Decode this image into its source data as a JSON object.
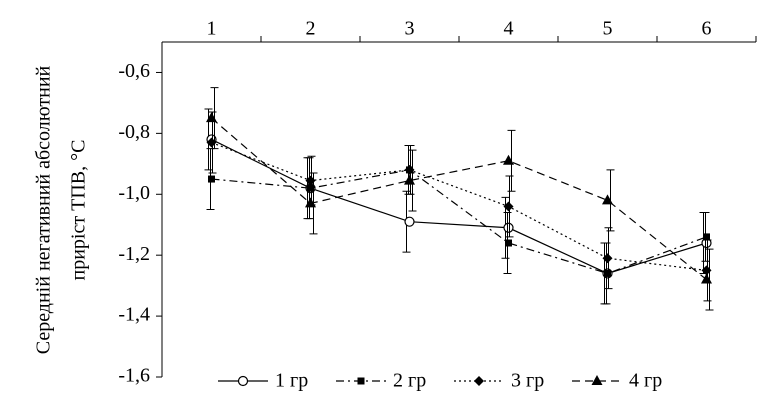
{
  "chart_data": {
    "type": "line",
    "ylabel_lines": [
      "Середній негативний абсолютний",
      "приріст ТПВ, °C"
    ],
    "categories": [
      "1",
      "2",
      "3",
      "4",
      "5",
      "6"
    ],
    "ylim": [
      -1.6,
      -0.5
    ],
    "yticks": [
      {
        "value": -0.6,
        "label": "-0,6"
      },
      {
        "value": -0.8,
        "label": "-0,8"
      },
      {
        "value": -1.0,
        "label": "-1,0"
      },
      {
        "value": -1.2,
        "label": "-1,2"
      },
      {
        "value": -1.4,
        "label": "-1,4"
      },
      {
        "value": -1.6,
        "label": "-1,6"
      }
    ],
    "grid": false,
    "legend": "bottom",
    "series": [
      {
        "name": "1 гр",
        "color": "#000000",
        "marker": "circle-open",
        "dash": "solid",
        "values": [
          -0.82,
          -0.98,
          -1.09,
          -1.11,
          -1.26,
          -1.16
        ],
        "errors": [
          0.1,
          0.1,
          0.1,
          0.1,
          0.1,
          0.1
        ]
      },
      {
        "name": "2 гр",
        "color": "#000000",
        "marker": "square",
        "dash": "dash-dot",
        "values": [
          -0.95,
          -0.98,
          -0.92,
          -1.16,
          -1.26,
          -1.14
        ],
        "errors": [
          0.1,
          0.1,
          0.08,
          0.1,
          0.1,
          0.08
        ]
      },
      {
        "name": "3 гр",
        "color": "#000000",
        "marker": "diamond",
        "dash": "dot",
        "values": [
          -0.83,
          -0.955,
          -0.92,
          -1.04,
          -1.21,
          -1.25
        ],
        "errors": [
          0.1,
          0.08,
          0.08,
          0.1,
          0.1,
          0.1
        ]
      },
      {
        "name": "4 гр",
        "color": "#000000",
        "marker": "triangle",
        "dash": "dash",
        "values": [
          -0.75,
          -1.03,
          -0.955,
          -0.89,
          -1.02,
          -1.28
        ],
        "errors": [
          0.1,
          0.1,
          0.1,
          0.1,
          0.1,
          0.1
        ]
      }
    ]
  }
}
